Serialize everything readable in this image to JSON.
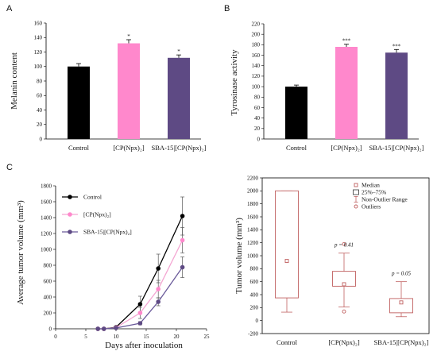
{
  "panel_letters": {
    "a": "A",
    "b": "B",
    "c": "C"
  },
  "colors": {
    "control": "#000000",
    "cp": "#ff88cc",
    "sba": "#5e4a84",
    "cp_line": "#f4a6d2",
    "sba_line": "#6a5a9a",
    "box": "#c06060"
  },
  "chart_data": [
    {
      "id": "A",
      "type": "bar",
      "categories": [
        "Control",
        "[CP(Npx)₂]",
        "SBA-15|[CP(Npx)₂]"
      ],
      "values": [
        100,
        132,
        112
      ],
      "errors": [
        4,
        5,
        4
      ],
      "significance": [
        "",
        "*",
        "*"
      ],
      "ylabel": "Melanin content",
      "ylim": [
        0,
        160
      ],
      "yticks": [
        "0",
        "20",
        "40",
        "60",
        "80",
        "100",
        "120",
        "140",
        "160"
      ]
    },
    {
      "id": "B",
      "type": "bar",
      "categories": [
        "Control",
        "[CP(Npx)₂]",
        "SBA-15|[CP(Npx)₂]"
      ],
      "values": [
        100,
        176,
        165
      ],
      "errors": [
        3,
        5,
        6
      ],
      "significance": [
        "",
        "***",
        "***"
      ],
      "ylabel": "Tyrosinase activity",
      "ylim": [
        0,
        220
      ],
      "yticks": [
        "0",
        "20",
        "40",
        "60",
        "80",
        "100",
        "120",
        "140",
        "160",
        "180",
        "200",
        "220"
      ]
    },
    {
      "id": "C-left",
      "type": "line",
      "xlabel": "Days after inoculation",
      "ylabel": "Average tumor  volume (mm³)",
      "xlim": [
        0,
        25
      ],
      "ylim": [
        0,
        1800
      ],
      "xticks": [
        "0",
        "5",
        "10",
        "15",
        "20",
        "25"
      ],
      "yticks": [
        "0",
        "200",
        "400",
        "600",
        "800",
        "1000",
        "1200",
        "1400",
        "1600",
        "1800"
      ],
      "legend": [
        "Control",
        "[CP(Npx)₂]",
        "SBA-15|[CP(Npx)₂]"
      ],
      "x": [
        7,
        8,
        10,
        14,
        17,
        21
      ],
      "series": [
        {
          "name": "Control",
          "values": [
            0,
            0,
            20,
            310,
            760,
            1420
          ],
          "errors": [
            0,
            0,
            5,
            100,
            180,
            240
          ]
        },
        {
          "name": "[CP(Npx)₂]",
          "values": [
            0,
            0,
            15,
            200,
            500,
            1115
          ],
          "errors": [
            0,
            0,
            5,
            70,
            110,
            160
          ]
        },
        {
          "name": "SBA-15|[CP(Npx)₂]",
          "values": [
            0,
            0,
            10,
            70,
            340,
            775
          ],
          "errors": [
            0,
            0,
            5,
            20,
            50,
            130
          ]
        }
      ]
    },
    {
      "id": "C-right",
      "type": "box",
      "categories": [
        "Control",
        "[CP(Npx)₂]",
        "SBA-15|[CP(Npx)₂]"
      ],
      "ylabel": "Tumor volume (mm³)",
      "ylim": [
        -200,
        2200
      ],
      "yticks": [
        "-200",
        "0",
        "200",
        "400",
        "600",
        "800",
        "1000",
        "1200",
        "1400",
        "1600",
        "1800",
        "2000",
        "2200"
      ],
      "legend": [
        "Median",
        "25%–75%",
        "Non-Outlier Range",
        "Outliers"
      ],
      "boxes": [
        {
          "q1": 350,
          "q3": 2000,
          "median": 920,
          "whisker_low": 130,
          "whisker_high": 2000,
          "outliers": []
        },
        {
          "q1": 530,
          "q3": 760,
          "median": 560,
          "whisker_low": 210,
          "whisker_high": 1040,
          "outliers": [
            1180,
            140
          ]
        },
        {
          "q1": 120,
          "q3": 340,
          "median": 280,
          "whisker_low": 60,
          "whisker_high": 600,
          "outliers": []
        }
      ],
      "pvalues": [
        "",
        "p = 0.41",
        "p = 0.05"
      ]
    }
  ]
}
